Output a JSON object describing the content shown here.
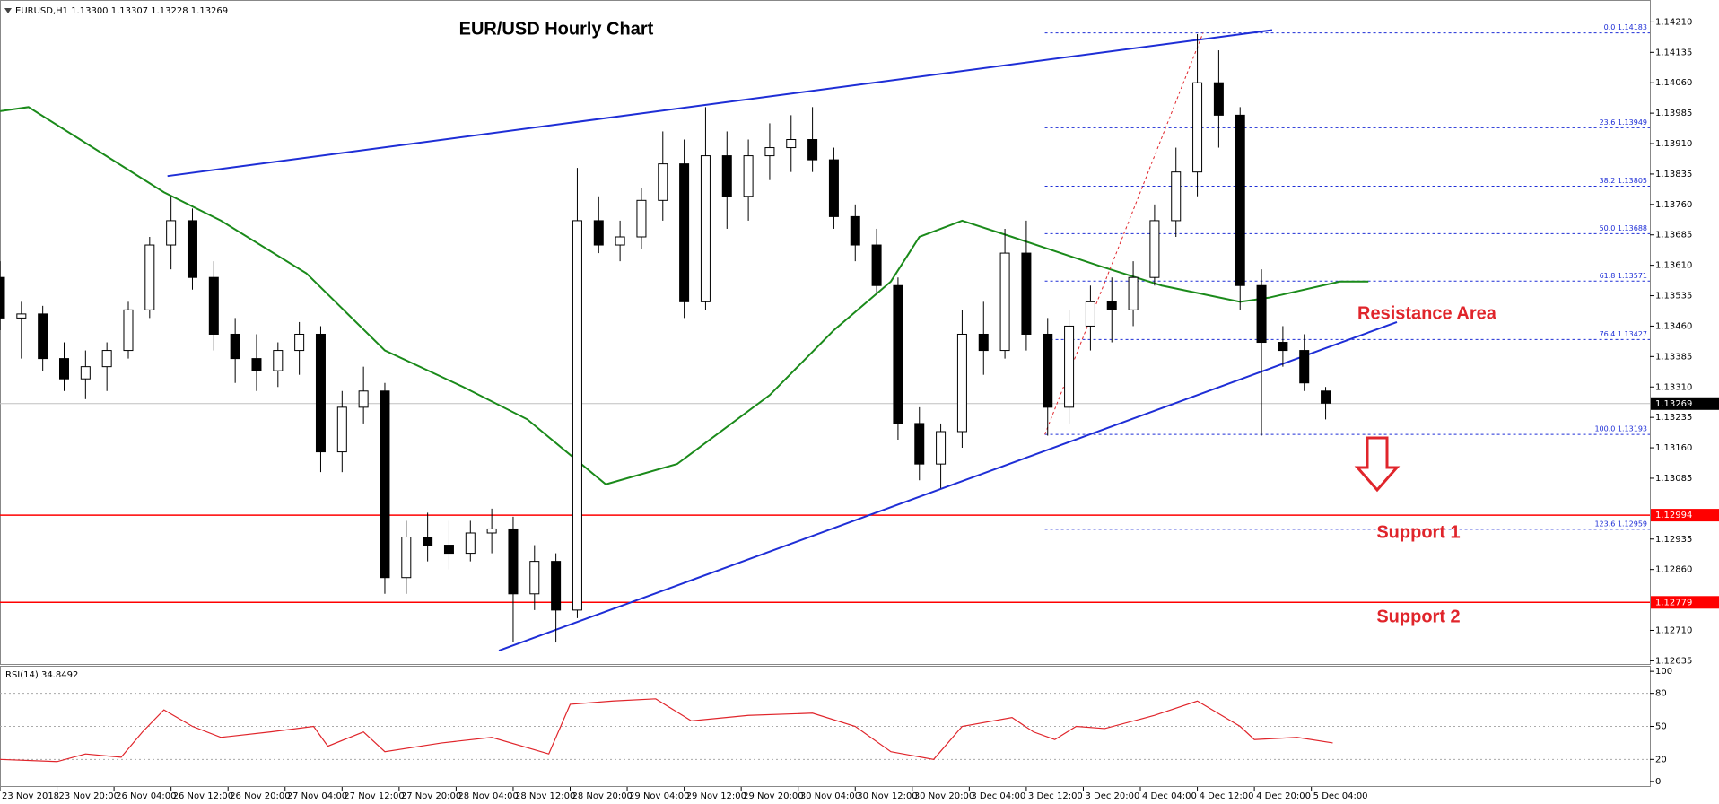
{
  "chart_data": {
    "type": "candlestick",
    "title": "EUR/USD Hourly Chart",
    "header": "EURUSD,H1  1.13300 1.13307 1.13228 1.13269",
    "annotations": [
      "Resistance Area",
      "Support 1",
      "Support 2"
    ],
    "x": [
      0,
      3,
      6,
      9,
      12,
      15,
      18,
      21,
      24,
      27,
      30,
      33,
      36,
      39,
      42,
      45,
      48,
      51,
      54,
      57,
      60,
      63,
      66,
      69,
      72,
      75,
      78,
      81,
      84,
      87,
      90,
      93,
      96,
      99,
      102,
      105,
      108,
      111,
      114,
      117,
      120,
      123,
      126,
      129,
      132,
      135,
      138,
      141,
      144,
      147,
      150,
      153,
      156,
      159,
      162,
      165,
      168,
      171,
      174,
      177,
      180,
      183,
      186
    ],
    "open": [
      1.1358,
      1.1348,
      1.1349,
      1.1338,
      1.1333,
      1.1336,
      1.134,
      1.135,
      1.1366,
      1.1372,
      1.1358,
      1.1344,
      1.1338,
      1.1335,
      1.134,
      1.1344,
      1.1315,
      1.1326,
      1.133,
      1.1284,
      1.1294,
      1.1292,
      1.129,
      1.1295,
      1.1296,
      1.128,
      1.1288,
      1.1276,
      1.1372,
      1.1366,
      1.1368,
      1.1377,
      1.1386,
      1.1352,
      1.1388,
      1.1378,
      1.1388,
      1.139,
      1.1392,
      1.1387,
      1.1373,
      1.1366,
      1.1356,
      1.1322,
      1.1312,
      1.132,
      1.1344,
      1.134,
      1.1364,
      1.1344,
      1.1326,
      1.1346,
      1.1352,
      1.135,
      1.1358,
      1.1372,
      1.1384,
      1.1406,
      1.1398,
      1.1356,
      1.1342,
      1.134,
      1.133
    ],
    "high": [
      1.1362,
      1.1352,
      1.1351,
      1.1342,
      1.134,
      1.1342,
      1.1352,
      1.1368,
      1.1378,
      1.1375,
      1.1362,
      1.1348,
      1.1344,
      1.1342,
      1.1347,
      1.1346,
      1.133,
      1.1336,
      1.1332,
      1.1298,
      1.13,
      1.1298,
      1.1298,
      1.1301,
      1.1299,
      1.1292,
      1.129,
      1.1385,
      1.1378,
      1.1372,
      1.138,
      1.1394,
      1.1392,
      1.14,
      1.1394,
      1.1392,
      1.1396,
      1.1398,
      1.14,
      1.139,
      1.1376,
      1.137,
      1.1358,
      1.1326,
      1.1322,
      1.135,
      1.1352,
      1.137,
      1.1372,
      1.1348,
      1.135,
      1.1356,
      1.1358,
      1.1362,
      1.1376,
      1.139,
      1.1418,
      1.1414,
      1.14,
      1.136,
      1.1346,
      1.1344,
      1.1331
    ],
    "low": [
      1.1345,
      1.1338,
      1.1335,
      1.133,
      1.1328,
      1.133,
      1.1338,
      1.1348,
      1.136,
      1.1355,
      1.134,
      1.1332,
      1.133,
      1.1331,
      1.1334,
      1.131,
      1.131,
      1.1322,
      1.128,
      1.128,
      1.1288,
      1.1286,
      1.1288,
      1.129,
      1.1268,
      1.1276,
      1.1268,
      1.1274,
      1.1364,
      1.1362,
      1.1365,
      1.1372,
      1.1348,
      1.135,
      1.137,
      1.1372,
      1.1382,
      1.1384,
      1.1384,
      1.137,
      1.1362,
      1.1354,
      1.1318,
      1.1308,
      1.1306,
      1.1316,
      1.1334,
      1.1338,
      1.134,
      1.1319,
      1.1322,
      1.134,
      1.1342,
      1.1346,
      1.1356,
      1.1368,
      1.1378,
      1.139,
      1.135,
      1.1319,
      1.1336,
      1.133,
      1.1323
    ],
    "close": [
      1.1348,
      1.1349,
      1.1338,
      1.1333,
      1.1336,
      1.134,
      1.135,
      1.1366,
      1.1372,
      1.1358,
      1.1344,
      1.1338,
      1.1335,
      1.134,
      1.1344,
      1.1315,
      1.1326,
      1.133,
      1.1284,
      1.1294,
      1.1292,
      1.129,
      1.1295,
      1.1296,
      1.128,
      1.1288,
      1.1276,
      1.1372,
      1.1366,
      1.1368,
      1.1377,
      1.1386,
      1.1352,
      1.1388,
      1.1378,
      1.1388,
      1.139,
      1.1392,
      1.1387,
      1.1373,
      1.1366,
      1.1356,
      1.1322,
      1.1312,
      1.132,
      1.1344,
      1.134,
      1.1364,
      1.1344,
      1.1326,
      1.1346,
      1.1352,
      1.135,
      1.1358,
      1.1372,
      1.1384,
      1.1406,
      1.1398,
      1.1356,
      1.1342,
      1.134,
      1.1332,
      1.1327
    ],
    "up_color": "#ffffff",
    "down_color": "#000000",
    "xlim": [
      0,
      231.5
    ],
    "xticks": [
      {
        "value": 0,
        "label": "23 Nov 2018"
      },
      {
        "value": 8,
        "label": "23 Nov 20:00"
      },
      {
        "value": 16,
        "label": "26 Nov 04:00"
      },
      {
        "value": 24,
        "label": "26 Nov 12:00"
      },
      {
        "value": 32,
        "label": "26 Nov 20:00"
      },
      {
        "value": 40,
        "label": "27 Nov 04:00"
      },
      {
        "value": 48,
        "label": "27 Nov 12:00"
      },
      {
        "value": 56,
        "label": "27 Nov 20:00"
      },
      {
        "value": 64,
        "label": "28 Nov 04:00"
      },
      {
        "value": 72,
        "label": "28 Nov 12:00"
      },
      {
        "value": 80,
        "label": "28 Nov 20:00"
      },
      {
        "value": 88,
        "label": "29 Nov 04:00"
      },
      {
        "value": 96,
        "label": "29 Nov 12:00"
      },
      {
        "value": 104,
        "label": "29 Nov 20:00"
      },
      {
        "value": 112,
        "label": "30 Nov 04:00"
      },
      {
        "value": 120,
        "label": "30 Nov 12:00"
      },
      {
        "value": 128,
        "label": "30 Nov 20:00"
      },
      {
        "value": 136,
        "label": "3 Dec 04:00"
      },
      {
        "value": 144,
        "label": "3 Dec 12:00"
      },
      {
        "value": 152,
        "label": "3 Dec 20:00"
      },
      {
        "value": 160,
        "label": "4 Dec 04:00"
      },
      {
        "value": 168,
        "label": "4 Dec 12:00"
      },
      {
        "value": 176,
        "label": "4 Dec 20:00"
      },
      {
        "value": 184,
        "label": "5 Dec 04:00"
      }
    ],
    "ylim": [
      1.12627,
      1.14264
    ],
    "yticks": [
      {
        "value": 1.1421,
        "label": "1.14210"
      },
      1.14135,
      {
        "value": 1.1406,
        "label": "1.14060"
      },
      1.13985,
      {
        "value": 1.1391,
        "label": "1.13910"
      },
      1.13835,
      {
        "value": 1.1376,
        "label": "1.13760"
      },
      1.13685,
      {
        "value": 1.1361,
        "label": "1.13610"
      },
      1.13535,
      {
        "value": 1.1346,
        "label": "1.13460"
      },
      1.13385,
      {
        "value": 1.1331,
        "label": "1.13310"
      },
      1.13235,
      {
        "value": 1.1316,
        "label": "1.13160"
      },
      1.13085,
      1.12935,
      {
        "value": 1.1286,
        "label": "1.12860"
      },
      {
        "value": 1.1271,
        "label": "1.12710"
      },
      1.12635
    ],
    "current_price": 1.13269,
    "supports": [
      1.12994,
      1.12779
    ],
    "support_color": "#ff0000",
    "ma": {
      "color": "#1a8a1a",
      "x": [
        0,
        4,
        23,
        31,
        43,
        54,
        65,
        74,
        85,
        95,
        108,
        117,
        125,
        129,
        135,
        142,
        154,
        163,
        174,
        178,
        188,
        192
      ],
      "values": [
        1.1399,
        1.14,
        1.1379,
        1.1372,
        1.1359,
        1.134,
        1.1331,
        1.1323,
        1.1307,
        1.1312,
        1.1329,
        1.1345,
        1.1357,
        1.1368,
        1.1372,
        1.1368,
        1.1361,
        1.1356,
        1.1352,
        1.1353,
        1.1357,
        1.1357
      ]
    },
    "trend_lines": [
      {
        "color": "#1e2ed6",
        "x": [
          23.5,
          178.5
        ],
        "values": [
          1.1383,
          1.1419
        ]
      },
      {
        "color": "#1e2ed6",
        "x": [
          70,
          196
        ],
        "values": [
          1.1266,
          1.1347
        ]
      }
    ],
    "fib_line": {
      "color": "#e0252b",
      "x": [
        146.6,
        168.8
      ],
      "values": [
        1.13193,
        1.14183
      ]
    },
    "fib_color": "#1e2ed6",
    "fib_levels": [
      {
        "value": 1.14183,
        "label": "0.0 1.14183"
      },
      {
        "value": 1.13949,
        "label": "23.6 1.13949"
      },
      {
        "value": 1.13805,
        "label": "38.2 1.13805"
      },
      {
        "value": 1.13688,
        "label": "50.0 1.13688"
      },
      {
        "value": 1.13571,
        "label": "61.8 1.13571"
      },
      {
        "value": 1.13427,
        "label": "76.4 1.13427"
      },
      {
        "value": 1.13193,
        "label": "100.0 1.13193"
      },
      {
        "value": 1.12959,
        "label": "123.6 1.12959"
      }
    ],
    "rsi": {
      "label": "RSI(14) 34.8492",
      "color": "#e0252b",
      "x": [
        0,
        8,
        12,
        17,
        20,
        23,
        27,
        31,
        38,
        44,
        46,
        51,
        54,
        62,
        69,
        77,
        80,
        86,
        92,
        97,
        105,
        114,
        120,
        125,
        131,
        135,
        142,
        145,
        148,
        151,
        155,
        162,
        168,
        174,
        176,
        182,
        187
      ],
      "values": [
        20,
        18,
        25,
        22,
        45,
        65,
        50,
        40,
        45,
        50,
        32,
        45,
        27,
        35,
        40,
        25,
        70,
        73,
        75,
        55,
        60,
        62,
        50,
        27,
        20,
        50,
        58,
        45,
        38,
        50,
        48,
        60,
        73,
        50,
        38,
        40,
        35
      ],
      "ylim": [
        -5,
        105
      ],
      "yticks": [
        100,
        80,
        50,
        20,
        0
      ],
      "grid_levels": [
        80,
        50,
        20
      ]
    }
  }
}
